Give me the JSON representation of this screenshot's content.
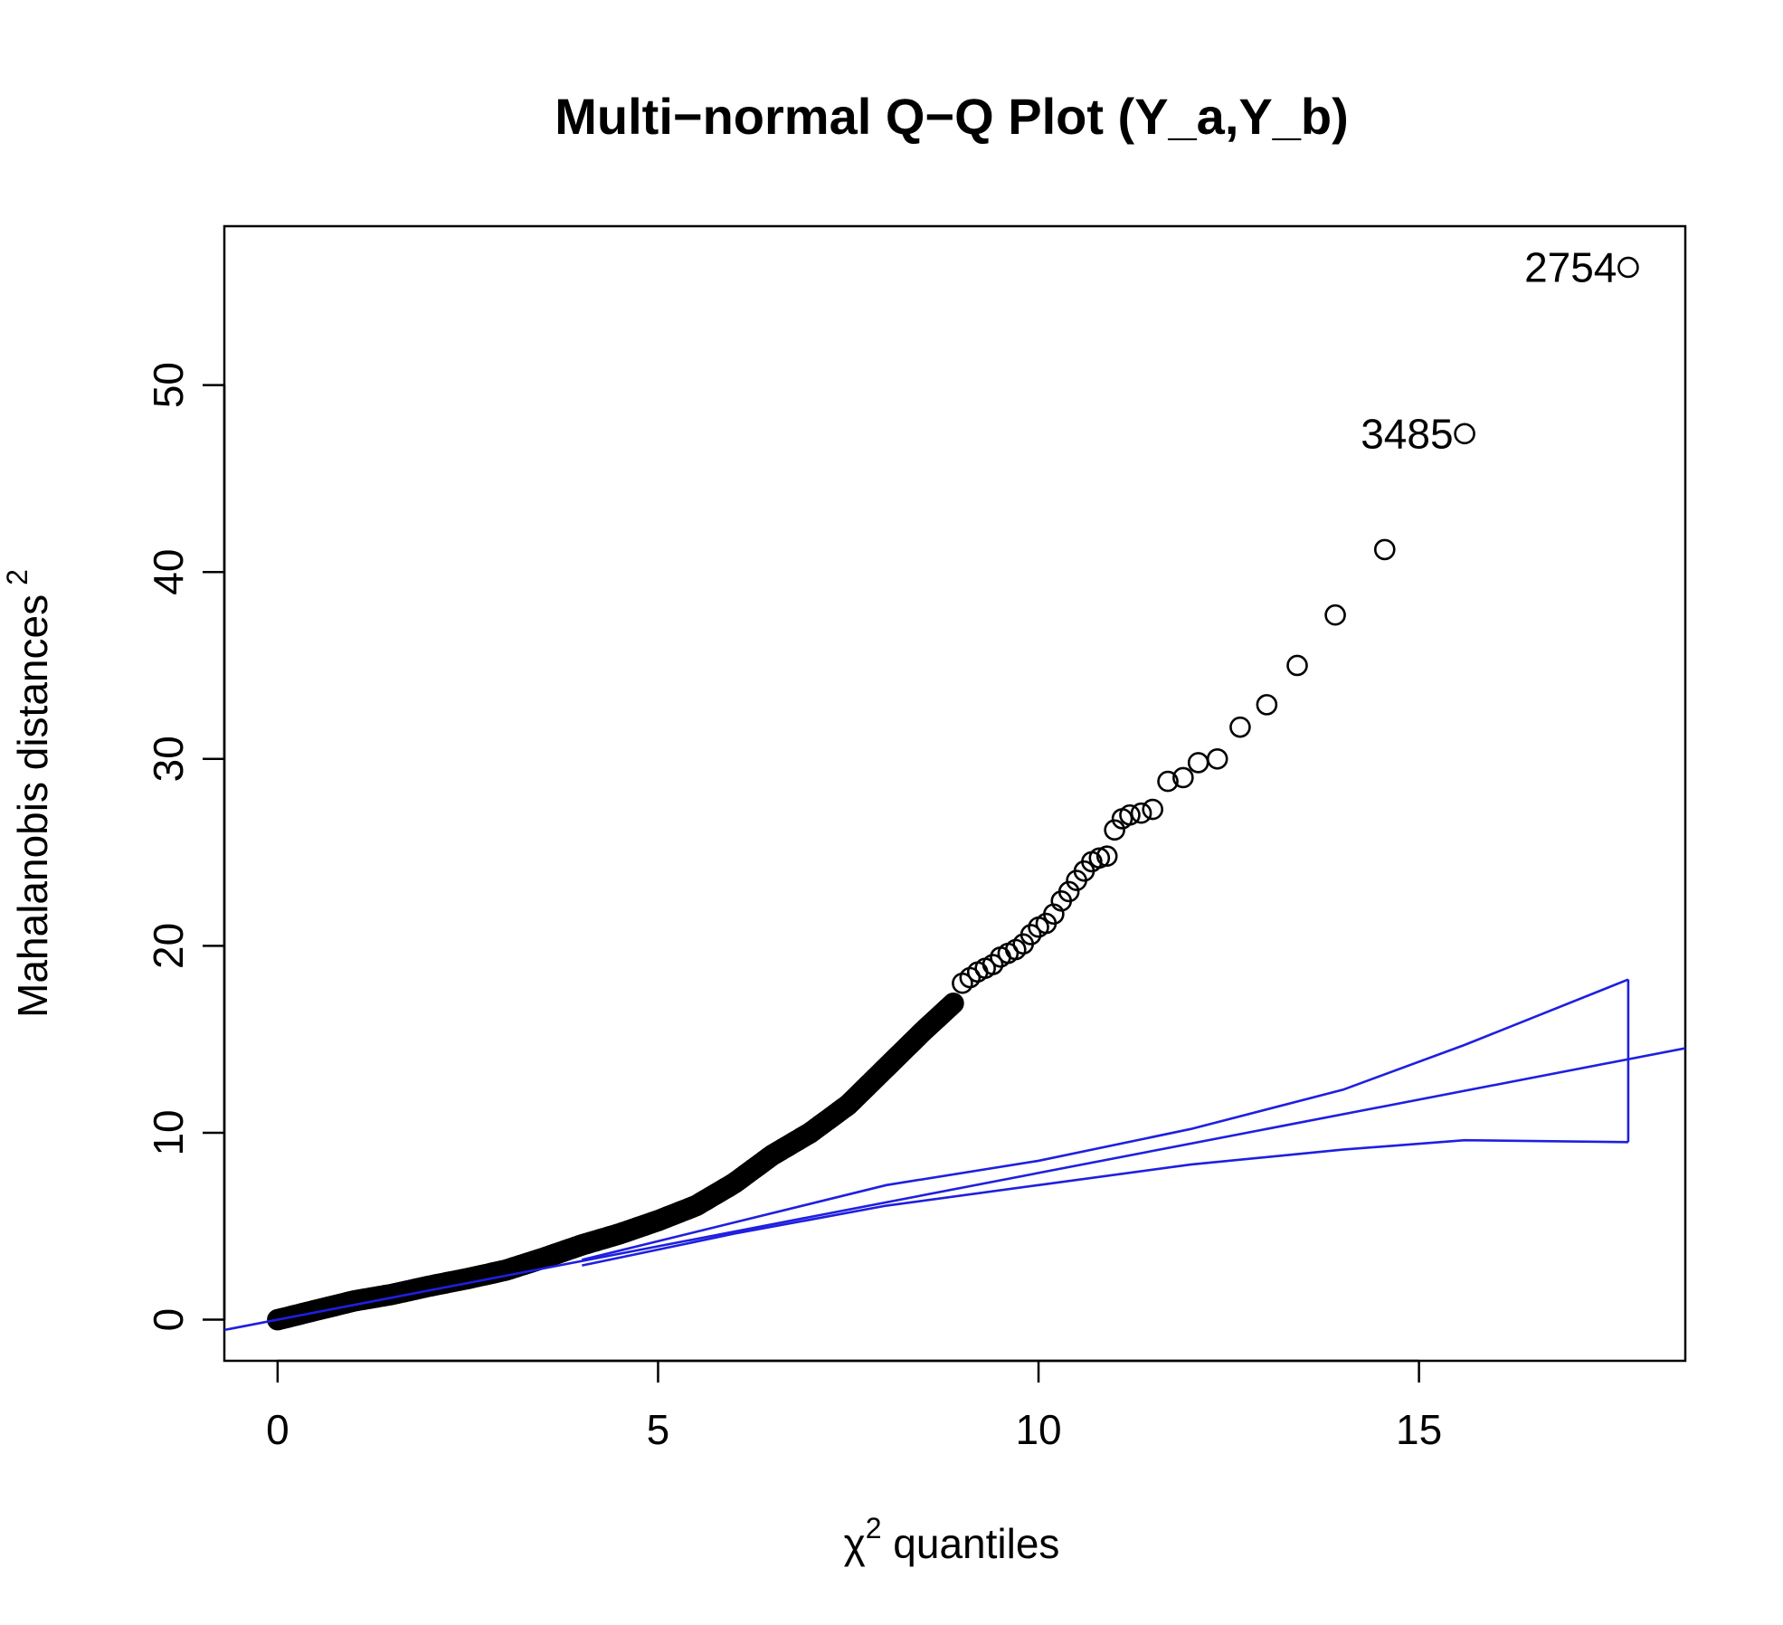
{
  "chart_data": {
    "type": "scatter",
    "title": "Multi−normal Q−Q Plot (Y_a,Y_b)",
    "xlabel": {
      "symbol": "χ",
      "superscript": "2",
      "text": " quantiles"
    },
    "ylabel": {
      "text": "Mahalanobis distances",
      "superscript": "2"
    },
    "xlim": [
      -0.7,
      18.5
    ],
    "ylim": [
      -2.2,
      58.5
    ],
    "xticks": [
      0,
      5,
      10,
      15
    ],
    "xtick_labels": [
      "0",
      "5",
      "10",
      "15"
    ],
    "yticks": [
      0,
      10,
      20,
      30,
      40,
      50
    ],
    "ytick_labels": [
      "0",
      "10",
      "20",
      "30",
      "40",
      "50"
    ],
    "grid": false,
    "point_color": "#000000",
    "line_color": "#1f1fe0",
    "dense_curve": [
      [
        0.0,
        0.0
      ],
      [
        0.3,
        0.3
      ],
      [
        0.6,
        0.6
      ],
      [
        1.0,
        1.0
      ],
      [
        1.5,
        1.35
      ],
      [
        2.0,
        1.8
      ],
      [
        2.5,
        2.2
      ],
      [
        3.0,
        2.65
      ],
      [
        3.5,
        3.3
      ],
      [
        4.0,
        4.0
      ],
      [
        4.5,
        4.6
      ],
      [
        5.0,
        5.3
      ],
      [
        5.5,
        6.1
      ],
      [
        6.0,
        7.3
      ],
      [
        6.5,
        8.8
      ],
      [
        7.0,
        10.0
      ],
      [
        7.5,
        11.5
      ],
      [
        8.0,
        13.5
      ],
      [
        8.5,
        15.5
      ],
      [
        8.9,
        17.0
      ]
    ],
    "sparse_points": [
      [
        9.0,
        18.0
      ],
      [
        9.1,
        18.3
      ],
      [
        9.2,
        18.6
      ],
      [
        9.3,
        18.8
      ],
      [
        9.4,
        19.0
      ],
      [
        9.5,
        19.4
      ],
      [
        9.6,
        19.6
      ],
      [
        9.7,
        19.8
      ],
      [
        9.8,
        20.1
      ],
      [
        9.9,
        20.6
      ],
      [
        10.0,
        21.0
      ],
      [
        10.1,
        21.2
      ],
      [
        10.2,
        21.7
      ],
      [
        10.3,
        22.4
      ],
      [
        10.4,
        22.9
      ],
      [
        10.5,
        23.5
      ],
      [
        10.6,
        24.0
      ],
      [
        10.7,
        24.5
      ],
      [
        10.8,
        24.7
      ],
      [
        10.9,
        24.8
      ],
      [
        11.0,
        26.2
      ],
      [
        11.1,
        26.8
      ],
      [
        11.2,
        27.0
      ],
      [
        11.35,
        27.1
      ],
      [
        11.5,
        27.3
      ],
      [
        11.7,
        28.8
      ],
      [
        11.9,
        29.0
      ],
      [
        12.1,
        29.8
      ],
      [
        12.35,
        30.0
      ],
      [
        12.65,
        31.7
      ],
      [
        13.0,
        32.9
      ],
      [
        13.4,
        35.0
      ],
      [
        13.9,
        37.7
      ],
      [
        14.55,
        41.2
      ]
    ],
    "outliers": [
      {
        "label": "3485",
        "x": 15.6,
        "y": 47.4
      },
      {
        "label": "2754",
        "x": 17.75,
        "y": 56.3
      }
    ],
    "reference_line": {
      "intercept": 0.0,
      "slope": 0.785
    },
    "envelope_upper": [
      [
        4.0,
        3.2
      ],
      [
        6.0,
        5.2
      ],
      [
        8.0,
        7.2
      ],
      [
        10.0,
        8.5
      ],
      [
        12.0,
        10.2
      ],
      [
        14.0,
        12.3
      ],
      [
        15.6,
        14.7
      ],
      [
        17.75,
        18.2
      ]
    ],
    "envelope_lower": [
      [
        4.0,
        2.9
      ],
      [
        6.0,
        4.6
      ],
      [
        8.0,
        6.1
      ],
      [
        10.0,
        7.2
      ],
      [
        12.0,
        8.3
      ],
      [
        14.0,
        9.1
      ],
      [
        15.6,
        9.6
      ],
      [
        17.75,
        9.5
      ]
    ]
  }
}
